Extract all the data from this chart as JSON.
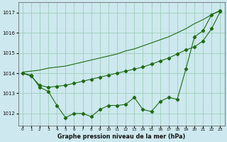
{
  "x_hours": [
    0,
    1,
    2,
    3,
    4,
    5,
    6,
    7,
    8,
    9,
    10,
    11,
    12,
    13,
    14,
    15,
    16,
    17,
    18,
    19,
    20,
    21,
    22,
    23
  ],
  "line_jagged": [
    1014.0,
    1013.9,
    1013.3,
    1013.1,
    1012.4,
    1011.8,
    1012.0,
    1012.0,
    1011.85,
    1012.2,
    1012.4,
    1012.4,
    1012.45,
    1012.8,
    1012.2,
    1012.1,
    1012.6,
    1012.8,
    1012.7,
    1014.2,
    1015.8,
    1016.1,
    1016.9,
    1017.1
  ],
  "line_mid": [
    1014.0,
    1013.85,
    1013.4,
    1013.3,
    1013.35,
    1013.4,
    1013.5,
    1013.6,
    1013.7,
    1013.8,
    1013.9,
    1014.0,
    1014.1,
    1014.2,
    1014.3,
    1014.45,
    1014.6,
    1014.75,
    1014.95,
    1015.15,
    1015.3,
    1015.6,
    1016.2,
    1017.05
  ],
  "line_top": [
    1014.05,
    1014.1,
    1014.15,
    1014.25,
    1014.3,
    1014.35,
    1014.45,
    1014.55,
    1014.65,
    1014.75,
    1014.85,
    1014.95,
    1015.1,
    1015.2,
    1015.35,
    1015.5,
    1015.65,
    1015.8,
    1016.0,
    1016.2,
    1016.45,
    1016.65,
    1016.9,
    1017.1
  ],
  "bg_color": "#cde8ee",
  "line_color": "#1e6b14",
  "grid_color": "#9dcfb8",
  "ylabel_ticks": [
    1012,
    1013,
    1014,
    1015,
    1016,
    1017
  ],
  "xlabel": "Graphe pression niveau de la mer (hPa)",
  "ylim": [
    1011.4,
    1017.5
  ],
  "xlim": [
    -0.5,
    23.5
  ]
}
